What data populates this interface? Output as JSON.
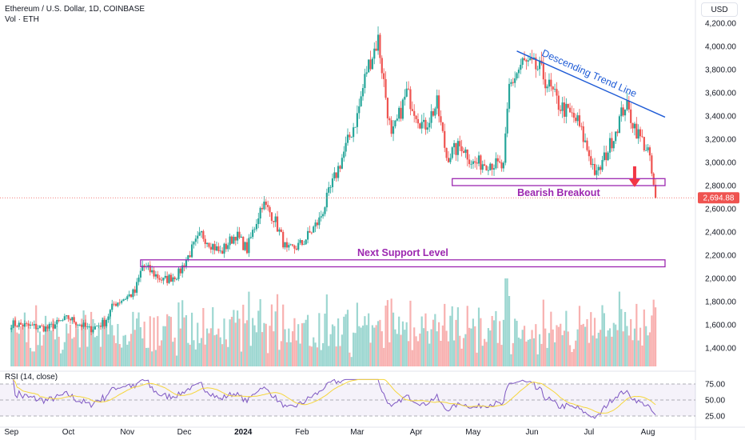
{
  "header": {
    "symbol_line": "Ethereum / U.S. Dollar, 1D, COINBASE",
    "volume_label": "Vol · ETH",
    "currency": "USD"
  },
  "rsi": {
    "label": "RSI (14, close)",
    "levels": [
      75,
      50,
      25
    ],
    "tick_labels": [
      "75.00",
      "50.00",
      "25.00"
    ]
  },
  "colors": {
    "up": "#26a69a",
    "down": "#ef5350",
    "annotation": "#9c27b0",
    "trendline": "#1e5bd6",
    "arrow": "#f23645",
    "rsi_line": "#7e57c2",
    "rsi_ma": "#f5d63c"
  },
  "chart_data": {
    "type": "candlestick",
    "title": "Ethereum / U.S. Dollar, 1D, COINBASE",
    "ylim": [
      1300,
      4250
    ],
    "y_ticks": [
      "4,200.00",
      "4,000.00",
      "3,800.00",
      "3,600.00",
      "3,400.00",
      "3,200.00",
      "3,000.00",
      "2,800.00",
      "2,600.00",
      "2,400.00",
      "2,200.00",
      "2,000.00",
      "1,800.00",
      "1,600.00",
      "1,400.00"
    ],
    "x_ticks": [
      "Sep",
      "Oct",
      "Nov",
      "Dec",
      "2024",
      "Feb",
      "Mar",
      "Apr",
      "May",
      "Jun",
      "Jul",
      "Aug"
    ],
    "x_tick_dates": [
      "2023-09-01",
      "2023-10-01",
      "2023-11-01",
      "2023-12-01",
      "2024-01-01",
      "2024-02-01",
      "2024-03-01",
      "2024-04-01",
      "2024-05-01",
      "2024-06-01",
      "2024-07-01",
      "2024-08-01"
    ],
    "last_price": 2694.88,
    "last_price_label": "2,694.88",
    "price_path": [
      [
        "2023-09-01",
        1610
      ],
      [
        "2023-09-10",
        1590
      ],
      [
        "2023-09-20",
        1570
      ],
      [
        "2023-10-01",
        1660
      ],
      [
        "2023-10-12",
        1560
      ],
      [
        "2023-10-20",
        1620
      ],
      [
        "2023-10-25",
        1780
      ],
      [
        "2023-11-05",
        1880
      ],
      [
        "2023-11-09",
        2110
      ],
      [
        "2023-11-20",
        1980
      ],
      [
        "2023-11-28",
        2040
      ],
      [
        "2023-12-05",
        2250
      ],
      [
        "2023-12-10",
        2380
      ],
      [
        "2023-12-20",
        2220
      ],
      [
        "2023-12-28",
        2380
      ],
      [
        "2024-01-03",
        2250
      ],
      [
        "2024-01-11",
        2650
      ],
      [
        "2024-01-17",
        2530
      ],
      [
        "2024-01-24",
        2230
      ],
      [
        "2024-02-01",
        2300
      ],
      [
        "2024-02-10",
        2500
      ],
      [
        "2024-02-20",
        2950
      ],
      [
        "2024-03-01",
        3400
      ],
      [
        "2024-03-06",
        3800
      ],
      [
        "2024-03-12",
        4060
      ],
      [
        "2024-03-19",
        3200
      ],
      [
        "2024-03-27",
        3600
      ],
      [
        "2024-04-05",
        3300
      ],
      [
        "2024-04-12",
        3500
      ],
      [
        "2024-04-17",
        3050
      ],
      [
        "2024-04-25",
        3150
      ],
      [
        "2024-05-01",
        2990
      ],
      [
        "2024-05-10",
        3000
      ],
      [
        "2024-05-17",
        2950
      ],
      [
        "2024-05-20",
        3650
      ],
      [
        "2024-05-27",
        3860
      ],
      [
        "2024-06-05",
        3800
      ],
      [
        "2024-06-15",
        3500
      ],
      [
        "2024-06-25",
        3350
      ],
      [
        "2024-07-05",
        2880
      ],
      [
        "2024-07-12",
        3150
      ],
      [
        "2024-07-20",
        3500
      ],
      [
        "2024-07-27",
        3240
      ],
      [
        "2024-08-01",
        3100
      ],
      [
        "2024-08-05",
        2694.88
      ]
    ],
    "annotations": [
      {
        "label": "Descending Trend Line",
        "kind": "trend_line",
        "from": [
          "2024-05-24",
          3960
        ],
        "to": [
          "2024-08-10",
          3390
        ]
      },
      {
        "label": "Bearish Breakout",
        "kind": "zone",
        "from": [
          "2024-04-20",
          2800
        ],
        "to": [
          "2024-08-10",
          2860
        ]
      },
      {
        "label": "Next Support Level",
        "kind": "zone",
        "from": [
          "2023-11-08",
          2100
        ],
        "to": [
          "2024-08-10",
          2160
        ]
      }
    ]
  }
}
